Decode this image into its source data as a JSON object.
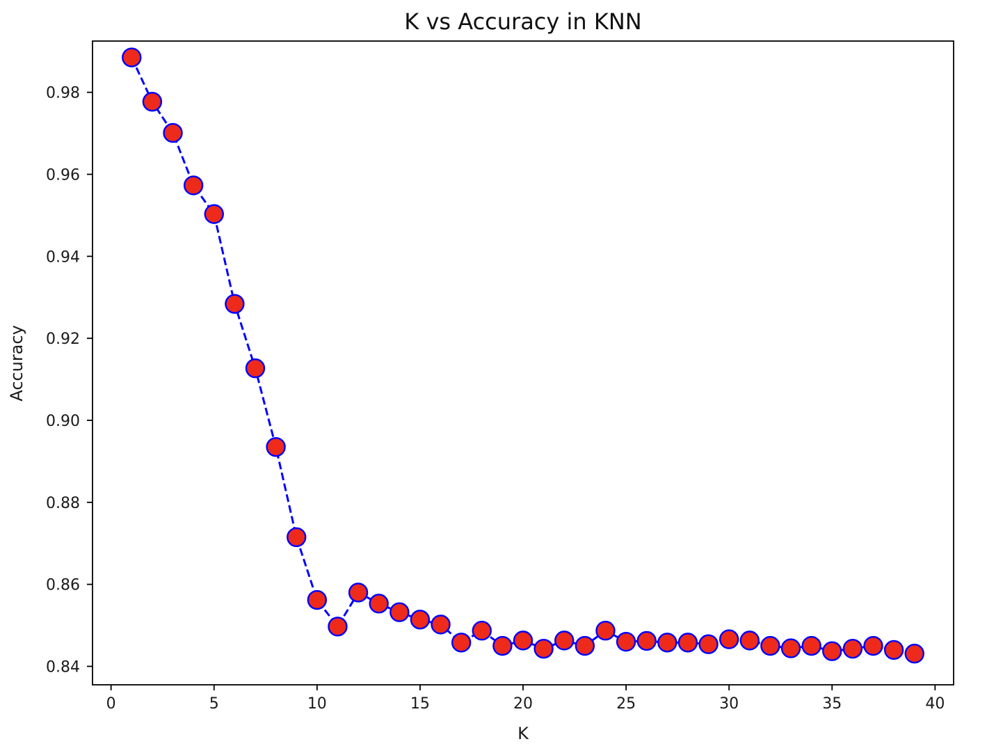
{
  "chart_data": {
    "type": "line",
    "title": "K vs Accuracy in KNN",
    "xlabel": "K",
    "ylabel": "Accuracy",
    "xlim": [
      -0.9,
      40.9
    ],
    "ylim": [
      0.8355,
      0.9925
    ],
    "xticks": [
      0,
      5,
      10,
      15,
      20,
      25,
      30,
      35,
      40
    ],
    "xtick_labels": [
      "0",
      "5",
      "10",
      "15",
      "20",
      "25",
      "30",
      "35",
      "40"
    ],
    "yticks": [
      0.84,
      0.86,
      0.88,
      0.9,
      0.92,
      0.94,
      0.96,
      0.98
    ],
    "ytick_labels": [
      "0.84",
      "0.86",
      "0.88",
      "0.90",
      "0.92",
      "0.94",
      "0.96",
      "0.98"
    ],
    "grid": false,
    "series": [
      {
        "line_color": "#0000ff",
        "line_style": "dashed",
        "marker": "circle",
        "marker_face_color": "#ee2a1b",
        "marker_edge_color": "#0000ff",
        "x": [
          1,
          2,
          3,
          4,
          5,
          6,
          7,
          8,
          9,
          10,
          11,
          12,
          13,
          14,
          15,
          16,
          17,
          18,
          19,
          20,
          21,
          22,
          23,
          24,
          25,
          26,
          27,
          28,
          29,
          30,
          31,
          32,
          33,
          34,
          35,
          36,
          37,
          38,
          39
        ],
        "values": [
          0.9885,
          0.9777,
          0.9701,
          0.9573,
          0.9503,
          0.9284,
          0.9127,
          0.8935,
          0.8715,
          0.8562,
          0.8497,
          0.858,
          0.8553,
          0.8532,
          0.8514,
          0.8502,
          0.8458,
          0.8487,
          0.845,
          0.8463,
          0.8443,
          0.8463,
          0.845,
          0.8487,
          0.846,
          0.8462,
          0.8458,
          0.8458,
          0.8454,
          0.8466,
          0.8463,
          0.845,
          0.8444,
          0.845,
          0.8437,
          0.8443,
          0.845,
          0.844,
          0.8431
        ]
      }
    ]
  }
}
